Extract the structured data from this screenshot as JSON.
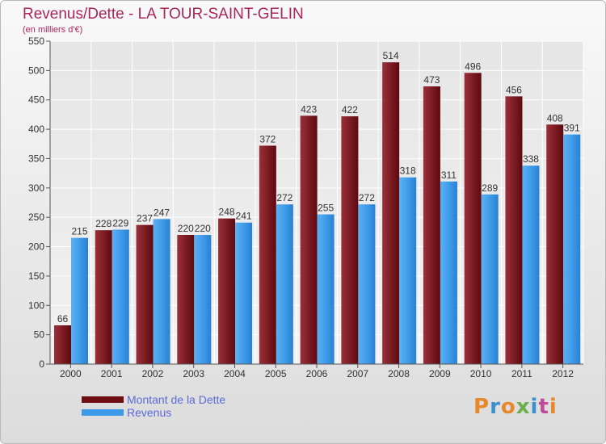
{
  "header": {
    "title": "Revenus/Dette - LA TOUR-SAINT-GELIN",
    "subtitle": "(en milliers d'€)"
  },
  "legend": {
    "items": [
      {
        "label": "Montant de la Dette",
        "color": "#6e0d12"
      },
      {
        "label": "Revenus",
        "color": "#3d9ae8"
      }
    ]
  },
  "brand": {
    "text": "Proxiti",
    "colors": [
      "#e8872c",
      "#3a8fd0",
      "#e8872c",
      "#6ab04c",
      "#3a8fd0",
      "#c04a9a",
      "#e8872c"
    ]
  },
  "chart_data": {
    "type": "bar",
    "title": "Revenus/Dette - LA TOUR-SAINT-GELIN",
    "subtitle": "(en milliers d'€)",
    "categories": [
      "2000",
      "2001",
      "2002",
      "2003",
      "2004",
      "2005",
      "2006",
      "2007",
      "2008",
      "2009",
      "2010",
      "2011",
      "2012"
    ],
    "series": [
      {
        "name": "Montant de la Dette",
        "color": "#6e0d12",
        "values": [
          66,
          228,
          237,
          220,
          248,
          372,
          423,
          422,
          514,
          473,
          496,
          456,
          408
        ]
      },
      {
        "name": "Revenus",
        "color": "#3d9ae8",
        "values": [
          215,
          229,
          247,
          220,
          241,
          272,
          255,
          272,
          318,
          311,
          289,
          338,
          391
        ]
      }
    ],
    "ylim": [
      0,
      550
    ],
    "yticks": [
      0,
      50,
      100,
      150,
      200,
      250,
      300,
      350,
      400,
      450,
      500,
      550
    ],
    "grid": true,
    "legend_position": "bottom-left"
  }
}
